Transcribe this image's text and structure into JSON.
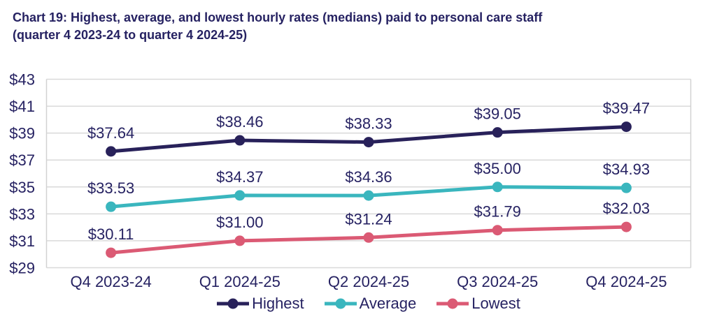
{
  "title": {
    "line1": "Chart 19: Highest, average, and lowest hourly rates (medians) paid to personal care staff",
    "line2": "(quarter 4 2023-24 to quarter 4 2024-25)"
  },
  "chart_data": {
    "type": "line",
    "title": "Chart 19: Highest, average, and lowest hourly rates (medians) paid to personal care staff (quarter 4 2023-24 to quarter 4 2024-25)",
    "categories": [
      "Q4 2023-24",
      "Q1 2024-25",
      "Q2 2024-25",
      "Q3 2024-25",
      "Q4 2024-25"
    ],
    "series": [
      {
        "name": "Highest",
        "color": "#28215A",
        "values": [
          37.64,
          38.46,
          38.33,
          39.05,
          39.47
        ],
        "point_labels": [
          "$37.64",
          "$38.46",
          "$38.33",
          "$39.05",
          "$39.47"
        ]
      },
      {
        "name": "Average",
        "color": "#3AB6BE",
        "values": [
          33.53,
          34.37,
          34.36,
          35.0,
          34.93
        ],
        "point_labels": [
          "$33.53",
          "$34.37",
          "$34.36",
          "$35.00",
          "$34.93"
        ]
      },
      {
        "name": "Lowest",
        "color": "#DB5A74",
        "values": [
          30.11,
          31.0,
          31.24,
          31.79,
          32.03
        ],
        "point_labels": [
          "$30.11",
          "$31.00",
          "$31.24",
          "$31.79",
          "$32.03"
        ]
      }
    ],
    "y_axis": {
      "min": 29,
      "max": 43,
      "tick_step": 2,
      "tick_labels": [
        "$29",
        "$31",
        "$33",
        "$35",
        "$37",
        "$39",
        "$41",
        "$43"
      ]
    },
    "grid": true,
    "legend_position": "bottom",
    "colors": {
      "text": "#262262",
      "gridline": "#D9D9D9",
      "plot_border": "#D2D2D2",
      "background": "#FFFFFF"
    }
  }
}
